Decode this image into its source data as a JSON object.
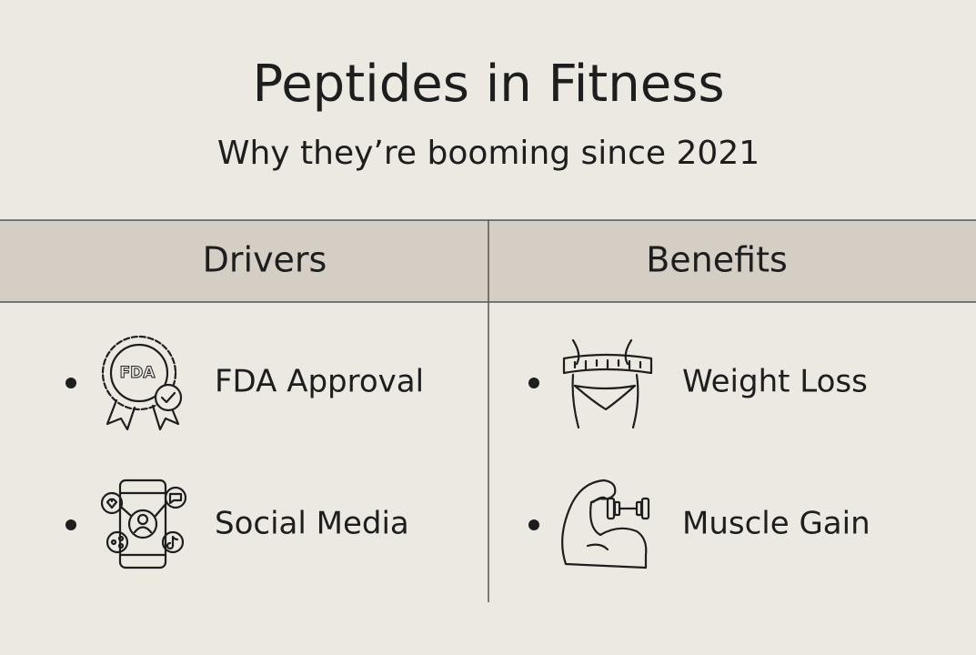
{
  "header": {
    "title": "Peptides in Fitness",
    "subtitle": "Why they’re booming since 2021"
  },
  "columns": [
    {
      "heading": "Drivers",
      "items": [
        {
          "label": "FDA Approval",
          "icon_text": "FDA"
        },
        {
          "label": "Social Media"
        }
      ]
    },
    {
      "heading": "Benefits",
      "items": [
        {
          "label": "Weight Loss"
        },
        {
          "label": "Muscle Gain"
        }
      ]
    }
  ]
}
